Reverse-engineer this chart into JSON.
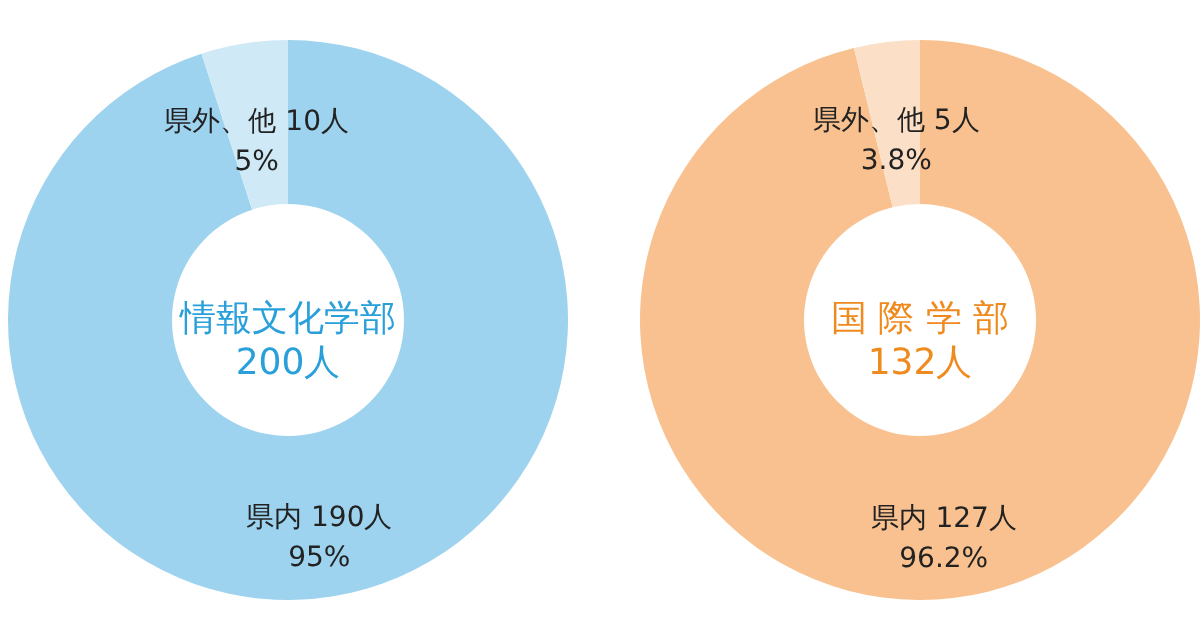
{
  "chart_data": [
    {
      "type": "donut",
      "title": "情報文化学部",
      "subtitle": "200人",
      "categories": [
        "県内",
        "県外、他"
      ],
      "values": [
        190,
        10
      ],
      "colors": [
        "#9dd3ee",
        "#cfe9f6"
      ],
      "value_labels": [
        "190人\n95%",
        "10人\n5%"
      ]
    },
    {
      "type": "donut",
      "title": "国 際 学 部",
      "subtitle": "132人",
      "categories": [
        "県内",
        "県外、他"
      ],
      "values": [
        127,
        5
      ],
      "colors": [
        "#f8c18f",
        "#fbe0c7"
      ],
      "value_labels": [
        "127人\n96.2%",
        "5人\n3.8%"
      ]
    }
  ]
}
